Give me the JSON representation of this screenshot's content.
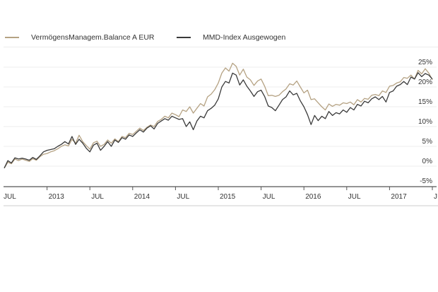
{
  "legend": [
    {
      "label": "VermögensManagem.Balance A EUR",
      "color": "#b5a283"
    },
    {
      "label": "MMD-Index Ausgewogen",
      "color": "#3a3a3a"
    }
  ],
  "chart_data": {
    "type": "line",
    "title": "",
    "xlabel": "",
    "ylabel": "",
    "x_unit": "months since Jul 2012",
    "xlim": [
      0,
      60
    ],
    "ylim": [
      -5,
      27
    ],
    "grid": true,
    "legend_position": "top-left",
    "y_ticks": [
      {
        "value": 25,
        "label": "25%"
      },
      {
        "value": 20,
        "label": "20%"
      },
      {
        "value": 15,
        "label": "15%"
      },
      {
        "value": 10,
        "label": "10%"
      },
      {
        "value": 5,
        "label": "5%"
      },
      {
        "value": 0,
        "label": "0%"
      },
      {
        "value": -5,
        "label": "-5%"
      }
    ],
    "x_ticks": [
      {
        "value": 0,
        "label": "JUL"
      },
      {
        "value": 6,
        "label": "2013"
      },
      {
        "value": 12,
        "label": "JUL"
      },
      {
        "value": 18,
        "label": "2014"
      },
      {
        "value": 24,
        "label": "JUL"
      },
      {
        "value": 30,
        "label": "2015"
      },
      {
        "value": 36,
        "label": "JUL"
      },
      {
        "value": 42,
        "label": "2016"
      },
      {
        "value": 48,
        "label": "JUL"
      },
      {
        "value": 54,
        "label": "2017"
      },
      {
        "value": 60,
        "label": "J"
      }
    ],
    "x": [
      0,
      0.5,
      1,
      1.5,
      2,
      2.5,
      3,
      3.5,
      4,
      4.5,
      5,
      5.5,
      6,
      6.5,
      7,
      7.5,
      8,
      8.5,
      9,
      9.5,
      10,
      10.5,
      11,
      11.5,
      12,
      12.5,
      13,
      13.5,
      14,
      14.5,
      15,
      15.5,
      16,
      16.5,
      17,
      17.5,
      18,
      18.5,
      19,
      19.5,
      20,
      20.5,
      21,
      21.5,
      22,
      22.5,
      23,
      23.5,
      24,
      24.5,
      25,
      25.5,
      26,
      26.5,
      27,
      27.5,
      28,
      28.5,
      29,
      29.5,
      30,
      30.5,
      31,
      31.5,
      32,
      32.5,
      33,
      33.5,
      34,
      34.5,
      35,
      35.5,
      36,
      36.5,
      37,
      37.5,
      38,
      38.5,
      39,
      39.5,
      40,
      40.5,
      41,
      41.5,
      42,
      42.5,
      43,
      43.5,
      44,
      44.5,
      45,
      45.5,
      46,
      46.5,
      47,
      47.5,
      48,
      48.5,
      49,
      49.5,
      50,
      50.5,
      51,
      51.5,
      52,
      52.5,
      53,
      53.5,
      54,
      54.5,
      55,
      55.5,
      56,
      56.5,
      57,
      57.5,
      58,
      58.5,
      59,
      59.5,
      60
    ],
    "series": [
      {
        "name": "VermögensManagem.Balance A EUR",
        "color": "#b5a283",
        "values": [
          -0.5,
          1.0,
          0.6,
          1.8,
          1.4,
          1.8,
          1.5,
          1.2,
          1.9,
          1.5,
          2.4,
          3.0,
          3.2,
          3.6,
          3.9,
          4.4,
          5.0,
          5.4,
          5.1,
          6.8,
          5.8,
          7.8,
          6.2,
          5.2,
          4.3,
          5.9,
          6.3,
          5.0,
          5.5,
          6.6,
          5.8,
          6.9,
          6.2,
          7.5,
          7.2,
          8.3,
          8.0,
          8.8,
          9.6,
          9.0,
          9.8,
          10.4,
          10.0,
          11.3,
          11.8,
          12.6,
          12.2,
          13.4,
          13.0,
          12.5,
          14.2,
          13.8,
          15.0,
          13.4,
          14.6,
          15.8,
          15.2,
          17.5,
          18.2,
          19.3,
          21.0,
          23.5,
          24.8,
          24.0,
          26.0,
          25.2,
          23.0,
          24.5,
          22.5,
          21.8,
          20.4,
          21.5,
          22.0,
          20.2,
          17.8,
          17.9,
          17.6,
          17.9,
          18.8,
          19.5,
          20.8,
          20.5,
          21.5,
          20.0,
          18.5,
          19.2,
          16.8,
          17.0,
          16.0,
          15.0,
          14.2,
          15.7,
          15.1,
          15.6,
          15.4,
          16.0,
          15.8,
          16.2,
          15.5,
          16.8,
          16.2,
          17.1,
          16.9,
          17.9,
          18.1,
          17.8,
          19.0,
          18.6,
          20.2,
          20.4,
          21.0,
          21.3,
          22.4,
          22.2,
          23.0,
          22.0,
          24.2,
          23.3,
          24.6,
          23.5,
          21.8
        ]
      },
      {
        "name": "MMD-Index Ausgewogen",
        "color": "#3a3a3a",
        "values": [
          -0.5,
          1.4,
          0.8,
          2.1,
          1.8,
          2.0,
          1.8,
          1.5,
          2.2,
          1.7,
          2.6,
          3.6,
          4.0,
          4.2,
          4.4,
          5.0,
          5.5,
          6.2,
          5.6,
          7.5,
          5.5,
          6.8,
          5.8,
          4.5,
          3.6,
          5.3,
          5.8,
          4.0,
          5.0,
          6.2,
          5.0,
          6.6,
          6.0,
          7.2,
          6.8,
          7.9,
          7.5,
          8.4,
          9.2,
          8.6,
          9.6,
          10.2,
          9.4,
          10.8,
          11.4,
          12.0,
          11.6,
          12.6,
          12.2,
          11.8,
          12.0,
          10.0,
          11.2,
          9.2,
          11.4,
          12.6,
          12.2,
          14.0,
          14.6,
          15.4,
          17.0,
          20.0,
          21.4,
          21.0,
          23.5,
          23.0,
          20.5,
          21.8,
          20.2,
          19.0,
          17.6,
          18.8,
          19.2,
          17.6,
          15.2,
          14.8,
          14.0,
          15.4,
          16.8,
          17.5,
          19.0,
          18.0,
          18.4,
          16.5,
          15.0,
          13.0,
          10.5,
          12.8,
          11.5,
          12.6,
          12.0,
          13.8,
          12.8,
          13.5,
          13.2,
          14.2,
          13.6,
          14.8,
          14.2,
          15.6,
          15.2,
          16.4,
          16.0,
          17.0,
          17.5,
          16.8,
          17.6,
          16.2,
          18.6,
          19.0,
          20.2,
          20.6,
          21.4,
          20.6,
          22.5,
          22.0,
          23.6,
          22.6,
          23.4,
          23.0,
          22.0
        ]
      }
    ]
  }
}
